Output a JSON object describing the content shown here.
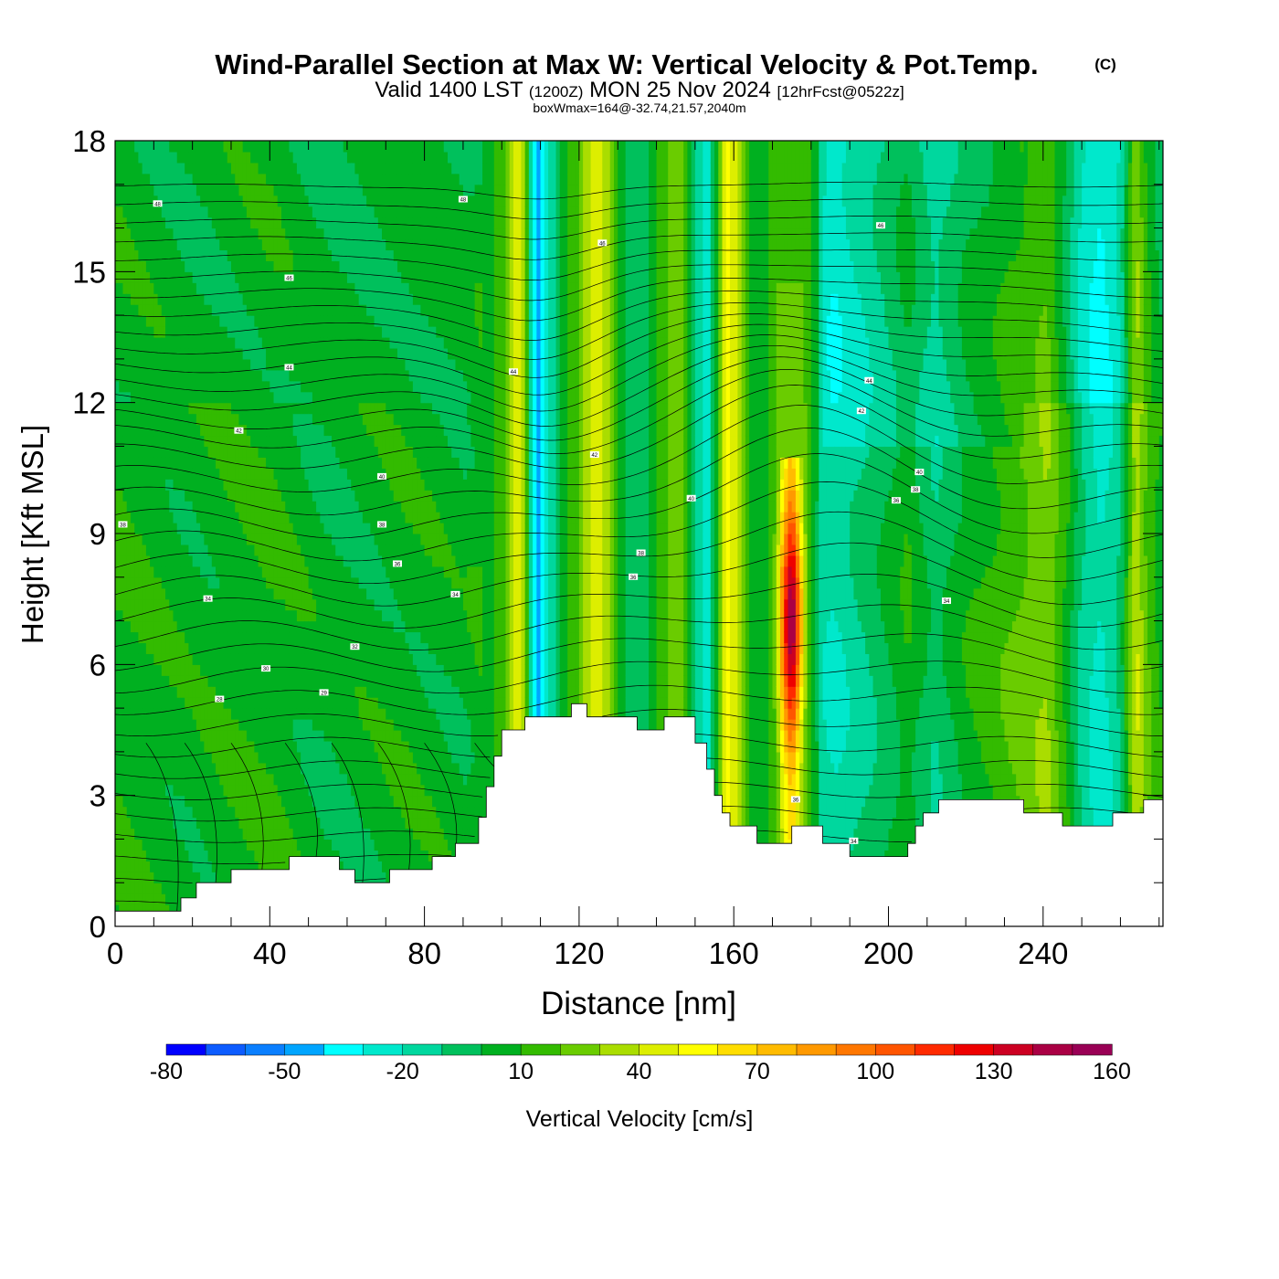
{
  "chart_data": {
    "type": "heatmap",
    "title": "Wind-Parallel Section at Max W: Vertical Velocity & Pot.Temp.",
    "title_mark": "(C)",
    "subtitle": {
      "valid": "Valid 1400 LST",
      "utc": "(1200Z)",
      "date": "MON 25 Nov 2024",
      "fcst": "[12hrFcst@0522z]",
      "box": "boxWmax=164@-32.74,21.57,2040m"
    },
    "xlabel": "Distance [nm]",
    "ylabel": "Height [Kft MSL]",
    "xlim": [
      0,
      271
    ],
    "ylim": [
      0,
      18
    ],
    "xticks": [
      0,
      40,
      80,
      120,
      160,
      200,
      240
    ],
    "yticks": [
      0,
      3,
      6,
      9,
      12,
      15,
      18
    ],
    "xtick_labels": [
      "0",
      "40",
      "80",
      "120",
      "160",
      "200",
      "240"
    ],
    "ytick_labels": [
      "0",
      "3",
      "6",
      "9",
      "12",
      "15",
      "18"
    ],
    "colorbar": {
      "label": "Vertical Velocity [cm/s]",
      "levels": [
        -80,
        -70,
        -60,
        -50,
        -40,
        -30,
        -20,
        -10,
        0,
        10,
        20,
        30,
        40,
        50,
        60,
        70,
        80,
        90,
        100,
        110,
        120,
        130,
        140,
        150,
        160
      ],
      "colors": [
        "#0000ff",
        "#0d5cff",
        "#0a7fff",
        "#00a5ff",
        "#00ffff",
        "#00e8cc",
        "#00d79e",
        "#00c05c",
        "#00b020",
        "#33bb00",
        "#6acc00",
        "#aadd00",
        "#ddee00",
        "#ffff00",
        "#ffdd00",
        "#ffbb00",
        "#ff9900",
        "#ff7700",
        "#ff5500",
        "#ff2a00",
        "#ee0000",
        "#cc0022",
        "#aa0044",
        "#990055"
      ],
      "tick_values": [
        -80,
        -50,
        -20,
        10,
        40,
        70,
        100,
        130,
        160
      ],
      "tick_labels": [
        "-80",
        "-50",
        "-20",
        "10",
        "40",
        "70",
        "100",
        "130",
        "160"
      ]
    },
    "terrain": [
      [
        0,
        0.35
      ],
      [
        10,
        0.35
      ],
      [
        17,
        0.35
      ],
      [
        17,
        0.65
      ],
      [
        21,
        0.65
      ],
      [
        21,
        1.0
      ],
      [
        30,
        1.0
      ],
      [
        30,
        1.3
      ],
      [
        45,
        1.3
      ],
      [
        45,
        1.6
      ],
      [
        58,
        1.6
      ],
      [
        58,
        1.3
      ],
      [
        62,
        1.3
      ],
      [
        62,
        1.0
      ],
      [
        71,
        1.0
      ],
      [
        71,
        1.3
      ],
      [
        82,
        1.3
      ],
      [
        82,
        1.6
      ],
      [
        88,
        1.6
      ],
      [
        88,
        1.9
      ],
      [
        94,
        1.9
      ],
      [
        94,
        2.5
      ],
      [
        96,
        2.5
      ],
      [
        96,
        3.2
      ],
      [
        98,
        3.2
      ],
      [
        98,
        3.9
      ],
      [
        100,
        3.9
      ],
      [
        100,
        4.5
      ],
      [
        106,
        4.5
      ],
      [
        106,
        4.8
      ],
      [
        118,
        4.8
      ],
      [
        118,
        5.1
      ],
      [
        122,
        5.1
      ],
      [
        122,
        4.8
      ],
      [
        135,
        4.8
      ],
      [
        135,
        4.5
      ],
      [
        142,
        4.5
      ],
      [
        142,
        4.8
      ],
      [
        150,
        4.8
      ],
      [
        150,
        4.2
      ],
      [
        153,
        4.2
      ],
      [
        153,
        3.6
      ],
      [
        155,
        3.6
      ],
      [
        155,
        3.0
      ],
      [
        157,
        3.0
      ],
      [
        157,
        2.6
      ],
      [
        159,
        2.6
      ],
      [
        159,
        2.3
      ],
      [
        166,
        2.3
      ],
      [
        166,
        1.9
      ],
      [
        175,
        1.9
      ],
      [
        175,
        2.3
      ],
      [
        183,
        2.3
      ],
      [
        183,
        1.9
      ],
      [
        190,
        1.9
      ],
      [
        190,
        1.6
      ],
      [
        205,
        1.6
      ],
      [
        205,
        1.9
      ],
      [
        207,
        1.9
      ],
      [
        207,
        2.3
      ],
      [
        209,
        2.3
      ],
      [
        209,
        2.6
      ],
      [
        213,
        2.6
      ],
      [
        213,
        2.9
      ],
      [
        235,
        2.9
      ],
      [
        235,
        2.6
      ],
      [
        245,
        2.6
      ],
      [
        245,
        2.3
      ],
      [
        258,
        2.3
      ],
      [
        258,
        2.6
      ],
      [
        266,
        2.6
      ],
      [
        266,
        2.9
      ],
      [
        271,
        2.9
      ]
    ],
    "w_columns": [
      {
        "x": 0,
        "w": 8
      },
      {
        "x": 20,
        "w": 5
      },
      {
        "x": 40,
        "w": 8
      },
      {
        "x": 55,
        "w": 3
      },
      {
        "x": 75,
        "w": 6
      },
      {
        "x": 90,
        "w": 4
      },
      {
        "x": 98,
        "w": 10
      },
      {
        "x": 101,
        "w": 18
      },
      {
        "x": 104,
        "w": 48
      },
      {
        "x": 106,
        "w": 26
      },
      {
        "x": 109,
        "w": -48
      },
      {
        "x": 111,
        "w": -28
      },
      {
        "x": 114,
        "w": -8
      },
      {
        "x": 117,
        "w": 8
      },
      {
        "x": 120,
        "w": 22
      },
      {
        "x": 123,
        "w": 42
      },
      {
        "x": 125,
        "w": 50
      },
      {
        "x": 128,
        "w": 28
      },
      {
        "x": 131,
        "w": 4
      },
      {
        "x": 135,
        "w": -10
      },
      {
        "x": 140,
        "w": 8
      },
      {
        "x": 143,
        "w": 20
      },
      {
        "x": 146,
        "w": 28
      },
      {
        "x": 150,
        "w": -8
      },
      {
        "x": 153,
        "w": -28
      },
      {
        "x": 156,
        "w": 10
      },
      {
        "x": 158,
        "w": 58
      },
      {
        "x": 161,
        "w": 40
      },
      {
        "x": 164,
        "w": 10
      },
      {
        "x": 168,
        "w": 4
      },
      {
        "x": 171,
        "w": 28
      },
      {
        "x": 173,
        "w": 110
      },
      {
        "x": 175,
        "w": 160
      },
      {
        "x": 177,
        "w": 90
      },
      {
        "x": 179,
        "w": 20
      },
      {
        "x": 182,
        "w": -14
      },
      {
        "x": 186,
        "w": -20
      },
      {
        "x": 192,
        "w": -12
      },
      {
        "x": 198,
        "w": -4
      },
      {
        "x": 205,
        "w": 8
      },
      {
        "x": 212,
        "w": -8
      },
      {
        "x": 220,
        "w": 6
      },
      {
        "x": 228,
        "w": 14
      },
      {
        "x": 235,
        "w": 22
      },
      {
        "x": 241,
        "w": 30
      },
      {
        "x": 246,
        "w": 10
      },
      {
        "x": 250,
        "w": -12
      },
      {
        "x": 255,
        "w": -24
      },
      {
        "x": 260,
        "w": -10
      },
      {
        "x": 264,
        "w": 40
      },
      {
        "x": 267,
        "w": 20
      },
      {
        "x": 271,
        "w": 6
      }
    ],
    "theta_levels": {
      "start": 26,
      "end": 62,
      "step": 1
    },
    "contour_labels": [
      {
        "x": 11,
        "h": 16.55,
        "text": "48"
      },
      {
        "x": 90,
        "h": 16.65,
        "text": "48"
      },
      {
        "x": 45,
        "h": 14.85,
        "text": "46"
      },
      {
        "x": 126,
        "h": 15.65,
        "text": "46"
      },
      {
        "x": 198,
        "h": 16.05,
        "text": "46"
      },
      {
        "x": 45,
        "h": 12.8,
        "text": "44"
      },
      {
        "x": 103,
        "h": 12.7,
        "text": "44"
      },
      {
        "x": 195,
        "h": 12.5,
        "text": "44"
      },
      {
        "x": 32,
        "h": 11.35,
        "text": "42"
      },
      {
        "x": 124,
        "h": 10.8,
        "text": "42"
      },
      {
        "x": 193,
        "h": 11.8,
        "text": "42"
      },
      {
        "x": 69,
        "h": 10.3,
        "text": "40"
      },
      {
        "x": 149,
        "h": 9.8,
        "text": "40"
      },
      {
        "x": 208,
        "h": 10.4,
        "text": "40"
      },
      {
        "x": 2,
        "h": 9.2,
        "text": "38"
      },
      {
        "x": 69,
        "h": 9.2,
        "text": "38"
      },
      {
        "x": 136,
        "h": 8.55,
        "text": "38"
      },
      {
        "x": 207,
        "h": 10.0,
        "text": "38"
      },
      {
        "x": 73,
        "h": 8.3,
        "text": "36"
      },
      {
        "x": 134,
        "h": 8.0,
        "text": "36"
      },
      {
        "x": 202,
        "h": 9.75,
        "text": "36"
      },
      {
        "x": 176,
        "h": 2.9,
        "text": "36"
      },
      {
        "x": 24,
        "h": 7.5,
        "text": "34"
      },
      {
        "x": 88,
        "h": 7.6,
        "text": "34"
      },
      {
        "x": 215,
        "h": 7.45,
        "text": "34"
      },
      {
        "x": 191,
        "h": 1.95,
        "text": "34"
      },
      {
        "x": 62,
        "h": 6.4,
        "text": "32"
      },
      {
        "x": 39,
        "h": 5.9,
        "text": "30"
      },
      {
        "x": 27,
        "h": 5.2,
        "text": "28"
      },
      {
        "x": 54,
        "h": 5.35,
        "text": "29"
      }
    ]
  }
}
